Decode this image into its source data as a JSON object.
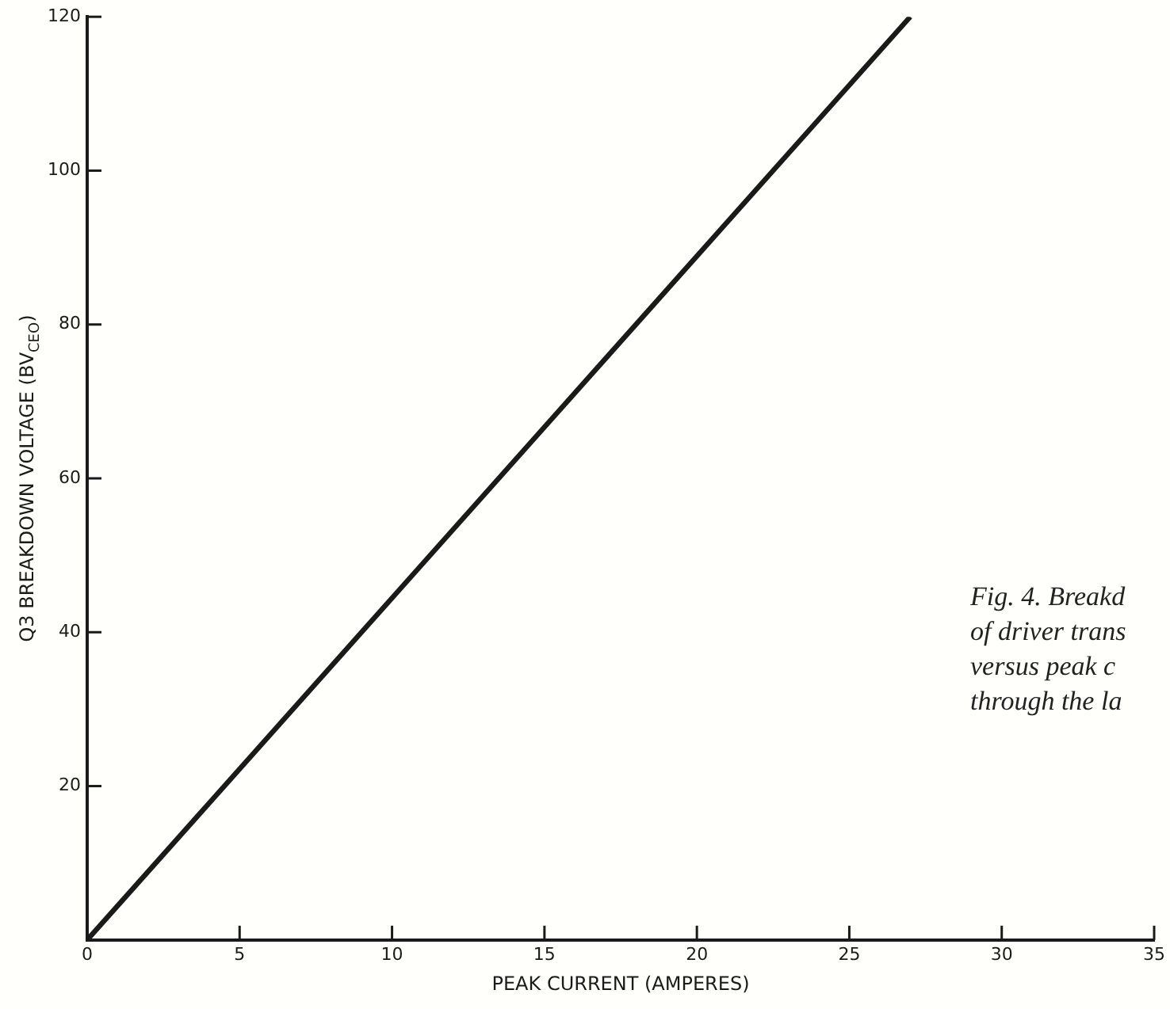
{
  "chart_data": {
    "type": "line",
    "xlabel": "PEAK CURRENT (AMPERES)",
    "ylabel": "Q3 BREAKDOWN VOLTAGE (BV$_{CEO}$)",
    "annotations": [
      "Fig. 4. Breakd",
      "of driver trans",
      "versus peak c",
      "through the la"
    ],
    "series": [
      {
        "color": "#1a1a1a",
        "x": [
          0,
          27
        ],
        "values": [
          0,
          120
        ]
      }
    ],
    "xlim": [
      0,
      35
    ],
    "xticks": [
      0,
      5,
      10,
      15,
      20,
      25,
      30,
      35
    ],
    "ylim": [
      0,
      120
    ],
    "yticks": [
      {
        "value": 0,
        "label": null
      },
      20,
      40,
      60,
      80,
      100,
      120
    ],
    "grid": false,
    "legend": false,
    "marker": "none",
    "line_style": "solid"
  }
}
